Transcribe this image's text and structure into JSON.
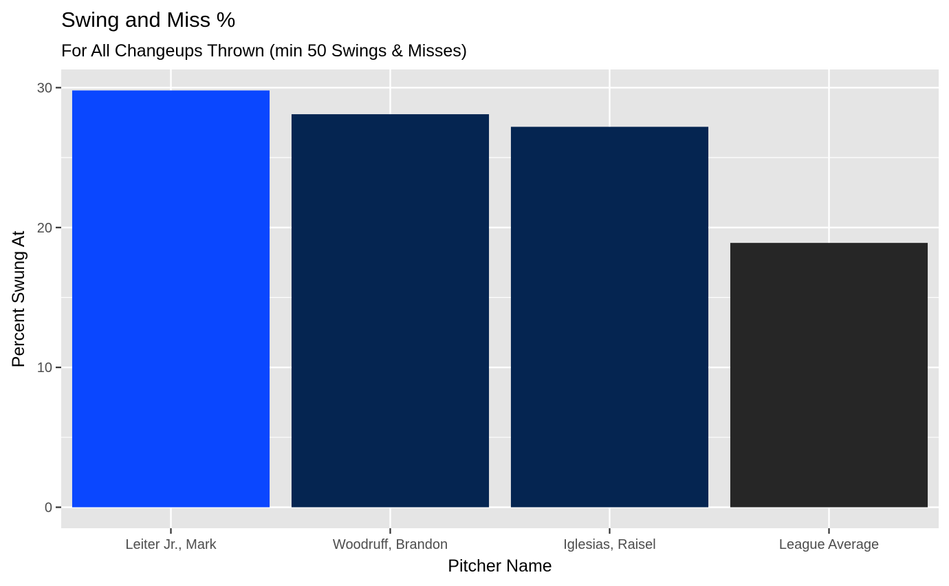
{
  "chart_data": {
    "type": "bar",
    "title": "Swing and Miss %",
    "subtitle": "For All Changeups Thrown (min 50 Swings & Misses)",
    "xlabel": "Pitcher Name",
    "ylabel": "Percent Swung At",
    "categories": [
      "Leiter Jr., Mark",
      "Woodruff, Brandon",
      "Iglesias, Raisel",
      "League Average"
    ],
    "values": [
      29.8,
      28.1,
      27.2,
      18.9
    ],
    "bar_colors": [
      "#0a47ff",
      "#052551",
      "#052551",
      "#262626"
    ],
    "ylim": [
      -1.5,
      31.3
    ],
    "yticks": [
      0,
      10,
      20,
      30
    ],
    "grid": true,
    "legend": "none",
    "panel_background": "#e5e5e5",
    "grid_color": "#ffffff"
  }
}
